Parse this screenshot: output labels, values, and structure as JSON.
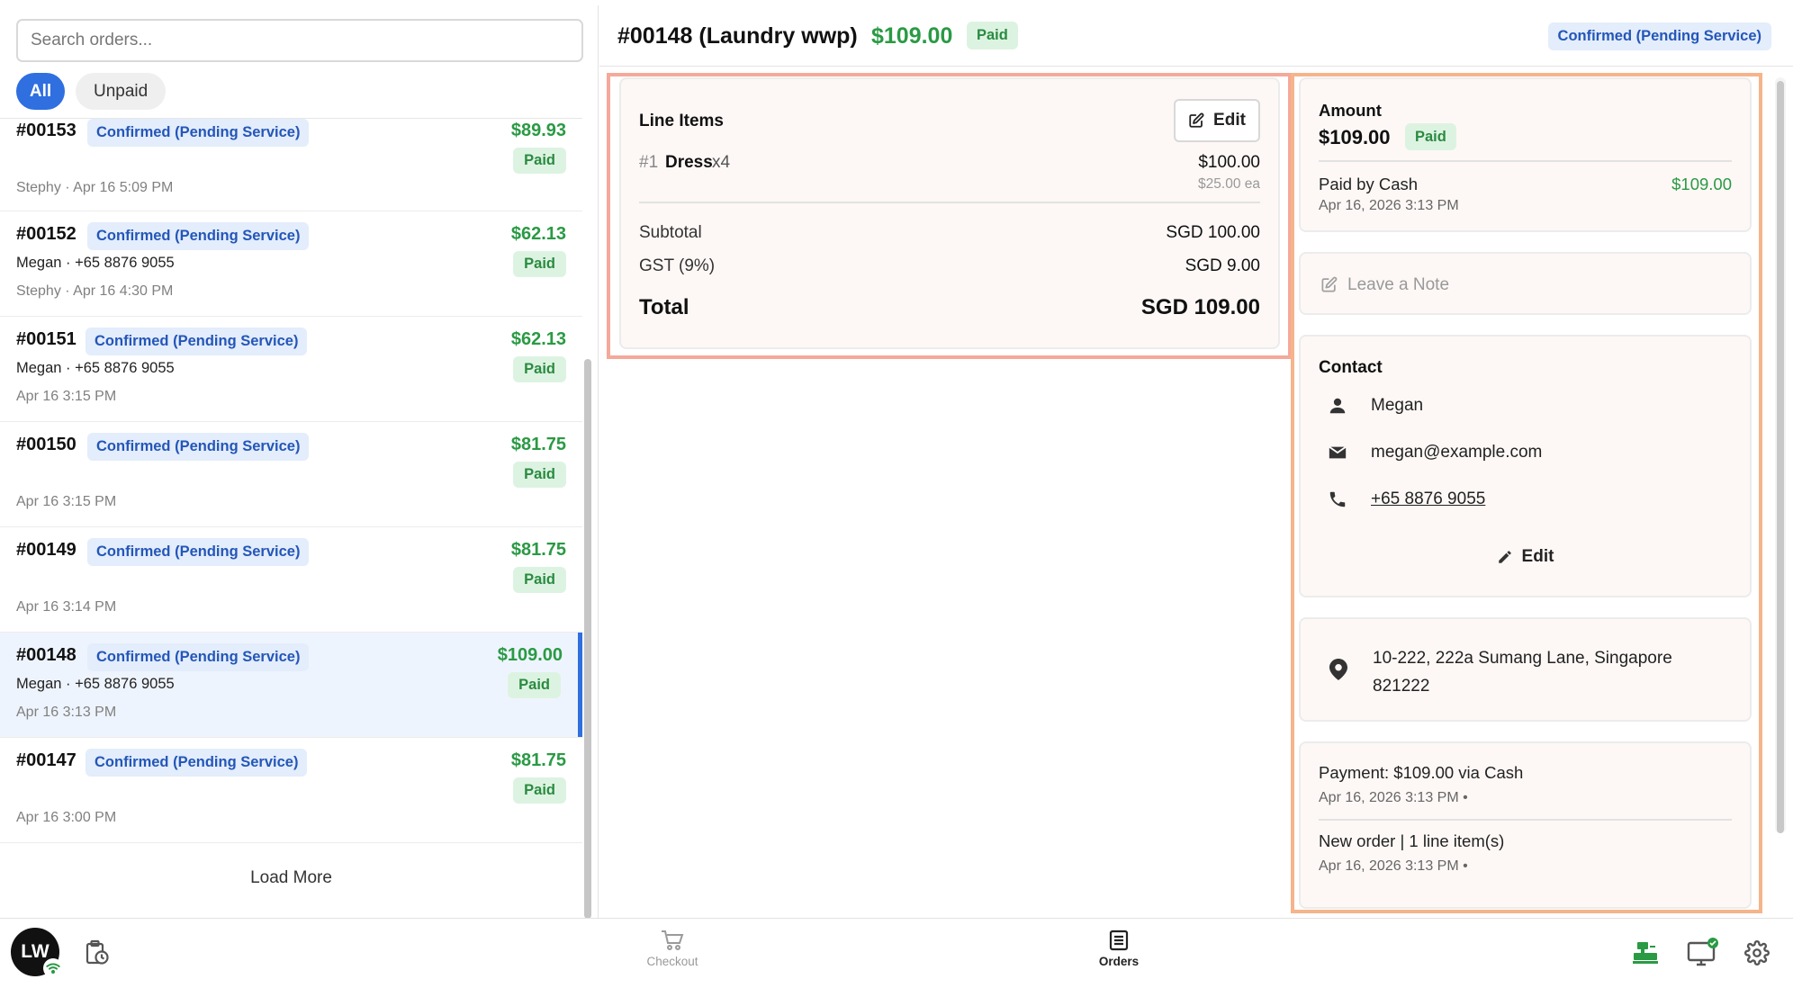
{
  "search": {
    "placeholder": "Search orders..."
  },
  "filters": {
    "all": "All",
    "unpaid": "Unpaid"
  },
  "orders": [
    {
      "number": "#00153",
      "status": "Confirmed (Pending Service)",
      "amount": "$89.93",
      "paid": "Paid",
      "customer": "",
      "meta": "Stephy · Apr 16 5:09 PM"
    },
    {
      "number": "#00152",
      "status": "Confirmed (Pending Service)",
      "amount": "$62.13",
      "paid": "Paid",
      "customer": "Megan · +65 8876 9055",
      "meta": "Stephy · Apr 16 4:30 PM"
    },
    {
      "number": "#00151",
      "status": "Confirmed (Pending Service)",
      "amount": "$62.13",
      "paid": "Paid",
      "customer": "Megan · +65 8876 9055",
      "meta": "Apr 16 3:15 PM"
    },
    {
      "number": "#00150",
      "status": "Confirmed (Pending Service)",
      "amount": "$81.75",
      "paid": "Paid",
      "customer": "",
      "meta": "Apr 16 3:15 PM"
    },
    {
      "number": "#00149",
      "status": "Confirmed (Pending Service)",
      "amount": "$81.75",
      "paid": "Paid",
      "customer": "",
      "meta": "Apr 16 3:14 PM"
    },
    {
      "number": "#00148",
      "status": "Confirmed (Pending Service)",
      "amount": "$109.00",
      "paid": "Paid",
      "customer": "Megan · +65 8876 9055",
      "meta": "Apr 16 3:13 PM"
    },
    {
      "number": "#00147",
      "status": "Confirmed (Pending Service)",
      "amount": "$81.75",
      "paid": "Paid",
      "customer": "",
      "meta": "Apr 16 3:00 PM"
    }
  ],
  "load_more": "Load More",
  "detail": {
    "title": "#00148 (Laundry wwp)",
    "amount": "$109.00",
    "paid": "Paid",
    "status": "Confirmed (Pending Service)"
  },
  "line_items": {
    "title": "Line Items",
    "edit": "Edit",
    "items": [
      {
        "index": "#1",
        "name": "Dress",
        "qty": "x4",
        "price": "$100.00",
        "unit": "$25.00 ea"
      }
    ],
    "subtotal_label": "Subtotal",
    "subtotal": "SGD 100.00",
    "gst_label": "GST (9%)",
    "gst": "SGD 9.00",
    "total_label": "Total",
    "total": "SGD 109.00"
  },
  "amount_card": {
    "label": "Amount",
    "value": "$109.00",
    "paid": "Paid",
    "paid_by": "Paid by Cash",
    "paid_date": "Apr 16, 2026 3:13 PM",
    "paid_value": "$109.00"
  },
  "note": {
    "placeholder": "Leave a Note"
  },
  "contact": {
    "title": "Contact",
    "name": "Megan",
    "email": "megan@example.com",
    "phone": "+65 8876 9055",
    "edit": "Edit"
  },
  "address": {
    "text": "10-222, 222a Sumang Lane, Singapore 821222"
  },
  "history": [
    {
      "title": "Payment: $109.00 via Cash",
      "date": "Apr 16, 2026 3:13 PM •"
    },
    {
      "title": "New order | 1 line item(s)",
      "date": "Apr 16, 2026 3:13 PM •"
    }
  ],
  "bottom": {
    "avatar": "LW",
    "checkout": "Checkout",
    "orders": "Orders"
  },
  "colors": {
    "accent": "#2f6fe0",
    "paid_green": "#2a9a44",
    "status_blue": "#2456b8",
    "highlight_pink": "#f5a99a",
    "highlight_orange": "#f5b48a"
  }
}
